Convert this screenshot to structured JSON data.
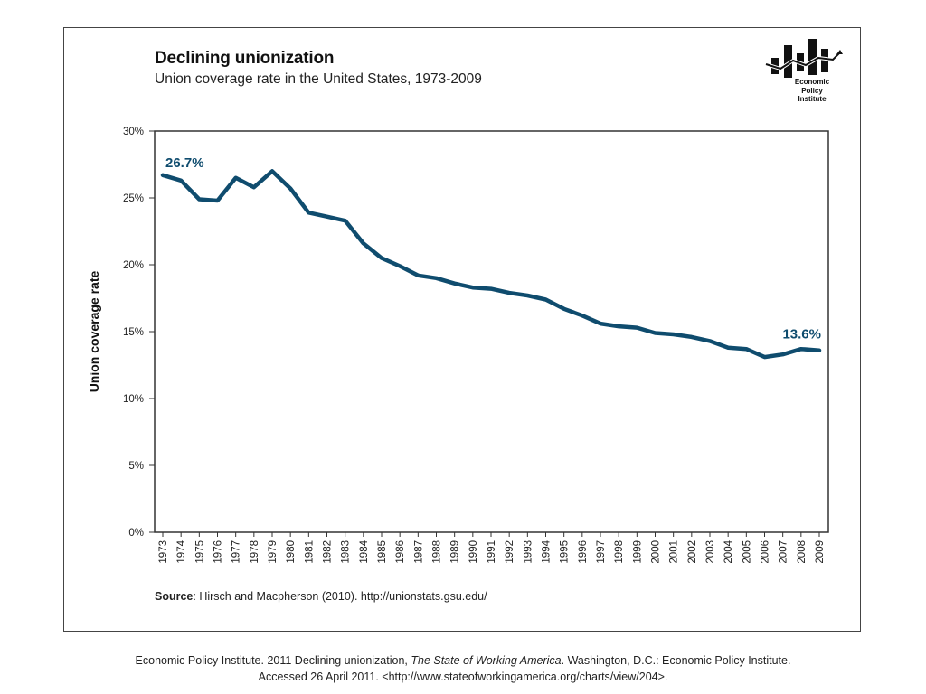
{
  "chart_data": {
    "type": "line",
    "title": "Declining unionization",
    "subtitle": "Union coverage rate in the United States, 1973-2009",
    "xlabel": "",
    "ylabel": "Union coverage rate",
    "ylim": [
      0,
      30
    ],
    "yticks": [
      0,
      5,
      10,
      15,
      20,
      25,
      30
    ],
    "ytick_labels": [
      "0%",
      "5%",
      "10%",
      "15%",
      "20%",
      "25%",
      "30%"
    ],
    "grid": false,
    "categories": [
      "1973",
      "1974",
      "1975",
      "1976",
      "1977",
      "1978",
      "1979",
      "1980",
      "1981",
      "1982",
      "1983",
      "1984",
      "1985",
      "1986",
      "1987",
      "1988",
      "1989",
      "1990",
      "1991",
      "1992",
      "1993",
      "1994",
      "1995",
      "1996",
      "1997",
      "1998",
      "1999",
      "2000",
      "2001",
      "2002",
      "2003",
      "2004",
      "2005",
      "2006",
      "2007",
      "2008",
      "2009"
    ],
    "series": [
      {
        "name": "Union coverage rate",
        "color": "#0f4c6e",
        "values": [
          26.7,
          26.3,
          24.9,
          24.8,
          26.5,
          25.8,
          27.0,
          25.7,
          23.9,
          23.6,
          23.3,
          21.6,
          20.5,
          19.9,
          19.2,
          19.0,
          18.6,
          18.3,
          18.2,
          17.9,
          17.7,
          17.4,
          16.7,
          16.2,
          15.6,
          15.4,
          15.3,
          14.9,
          14.8,
          14.6,
          14.3,
          13.8,
          13.7,
          13.1,
          13.3,
          13.7,
          13.6
        ]
      }
    ],
    "annotations": [
      {
        "text": "26.7%",
        "year": "1973",
        "value": 26.7,
        "position": "above-start"
      },
      {
        "text": "13.6%",
        "year": "2009",
        "value": 13.6,
        "position": "above-end"
      }
    ]
  },
  "logo": {
    "line1": "Economic",
    "line2": "Policy",
    "line3": "Institute"
  },
  "source": {
    "label": "Source",
    "text": ": Hirsch and Macpherson (2010). http://unionstats.gsu.edu/"
  },
  "citation": {
    "part1": "Economic Policy Institute. 2011 Declining unionization, ",
    "italic": "The State of Working America",
    "part2": ".  Washington, D.C.: Economic Policy Institute.",
    "line2": "Accessed 26 April 2011.  <http://www.stateofworkingamerica.org/charts/view/204>."
  }
}
